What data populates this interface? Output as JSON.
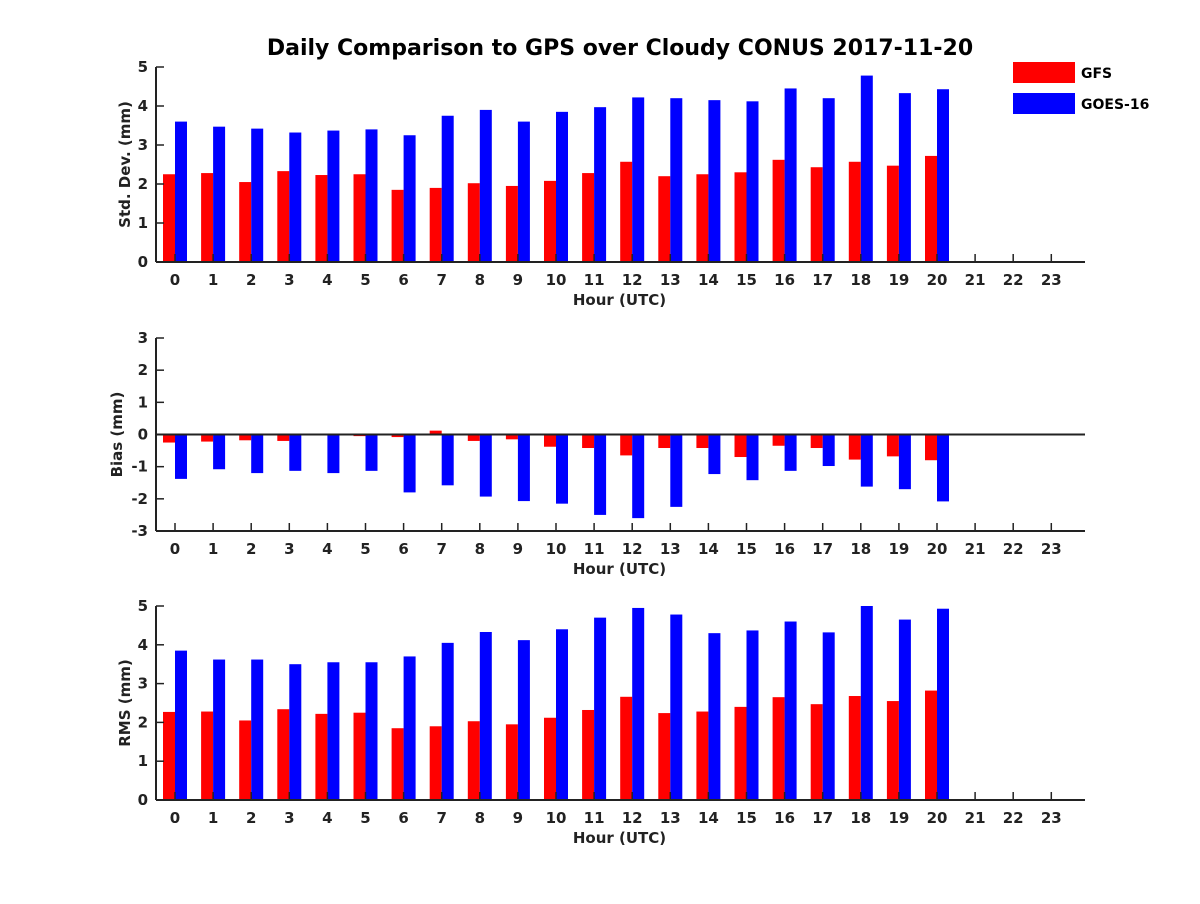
{
  "chart_data": [
    {
      "type": "bar",
      "title": "Daily Comparison to GPS over Cloudy CONUS 2017-11-20",
      "xlabel": "Hour (UTC)",
      "ylabel": "Std. Dev. (mm)",
      "ylim": [
        0,
        5
      ],
      "yticks": [
        0,
        1,
        2,
        3,
        4,
        5
      ],
      "categories": [
        "0",
        "1",
        "2",
        "3",
        "4",
        "5",
        "6",
        "7",
        "8",
        "9",
        "10",
        "11",
        "12",
        "13",
        "14",
        "15",
        "16",
        "17",
        "18",
        "19",
        "20",
        "21",
        "22",
        "23"
      ],
      "series": [
        {
          "name": "GFS",
          "color": "#ff0000",
          "values": [
            2.25,
            2.28,
            2.05,
            2.33,
            2.23,
            2.25,
            1.85,
            1.9,
            2.02,
            1.95,
            2.08,
            2.28,
            2.57,
            2.2,
            2.25,
            2.3,
            2.62,
            2.43,
            2.57,
            2.47,
            2.72,
            null,
            null,
            null
          ]
        },
        {
          "name": "GOES-16",
          "color": "#0000ff",
          "values": [
            3.6,
            3.47,
            3.42,
            3.32,
            3.37,
            3.4,
            3.25,
            3.75,
            3.9,
            3.6,
            3.85,
            3.97,
            4.22,
            4.2,
            4.15,
            4.12,
            4.45,
            4.2,
            4.78,
            4.33,
            4.43,
            null,
            null,
            null
          ]
        }
      ],
      "legend": {
        "position": "top-right",
        "entries": [
          "GFS",
          "GOES-16"
        ]
      },
      "grid": false
    },
    {
      "type": "bar",
      "xlabel": "Hour (UTC)",
      "ylabel": "Bias (mm)",
      "ylim": [
        -3,
        3
      ],
      "yticks": [
        -3,
        -2,
        -1,
        0,
        1,
        2,
        3
      ],
      "zero_line": true,
      "categories": [
        "0",
        "1",
        "2",
        "3",
        "4",
        "5",
        "6",
        "7",
        "8",
        "9",
        "10",
        "11",
        "12",
        "13",
        "14",
        "15",
        "16",
        "17",
        "18",
        "19",
        "20",
        "21",
        "22",
        "23"
      ],
      "series": [
        {
          "name": "GFS",
          "color": "#ff0000",
          "values": [
            -0.25,
            -0.22,
            -0.18,
            -0.2,
            -0.02,
            -0.05,
            -0.08,
            0.12,
            -0.2,
            -0.15,
            -0.38,
            -0.42,
            -0.65,
            -0.42,
            -0.42,
            -0.7,
            -0.35,
            -0.42,
            -0.78,
            -0.68,
            -0.8,
            null,
            null,
            null
          ]
        },
        {
          "name": "GOES-16",
          "color": "#0000ff",
          "values": [
            -1.38,
            -1.08,
            -1.2,
            -1.13,
            -1.2,
            -1.13,
            -1.8,
            -1.58,
            -1.93,
            -2.07,
            -2.15,
            -2.5,
            -2.6,
            -2.25,
            -1.23,
            -1.42,
            -1.13,
            -0.98,
            -1.62,
            -1.7,
            -2.08,
            null,
            null,
            null
          ]
        }
      ],
      "grid": false
    },
    {
      "type": "bar",
      "xlabel": "Hour (UTC)",
      "ylabel": "RMS (mm)",
      "ylim": [
        0,
        5
      ],
      "yticks": [
        0,
        1,
        2,
        3,
        4,
        5
      ],
      "categories": [
        "0",
        "1",
        "2",
        "3",
        "4",
        "5",
        "6",
        "7",
        "8",
        "9",
        "10",
        "11",
        "12",
        "13",
        "14",
        "15",
        "16",
        "17",
        "18",
        "19",
        "20",
        "21",
        "22",
        "23"
      ],
      "series": [
        {
          "name": "GFS",
          "color": "#ff0000",
          "values": [
            2.27,
            2.28,
            2.05,
            2.34,
            2.22,
            2.25,
            1.85,
            1.9,
            2.03,
            1.95,
            2.12,
            2.32,
            2.66,
            2.24,
            2.28,
            2.4,
            2.65,
            2.47,
            2.68,
            2.55,
            2.82,
            null,
            null,
            null
          ]
        },
        {
          "name": "GOES-16",
          "color": "#0000ff",
          "values": [
            3.85,
            3.62,
            3.62,
            3.5,
            3.55,
            3.55,
            3.7,
            4.05,
            4.33,
            4.12,
            4.4,
            4.7,
            4.95,
            4.78,
            4.3,
            4.37,
            4.6,
            4.32,
            5.0,
            4.65,
            4.93,
            null,
            null,
            null
          ]
        }
      ],
      "grid": false
    }
  ]
}
